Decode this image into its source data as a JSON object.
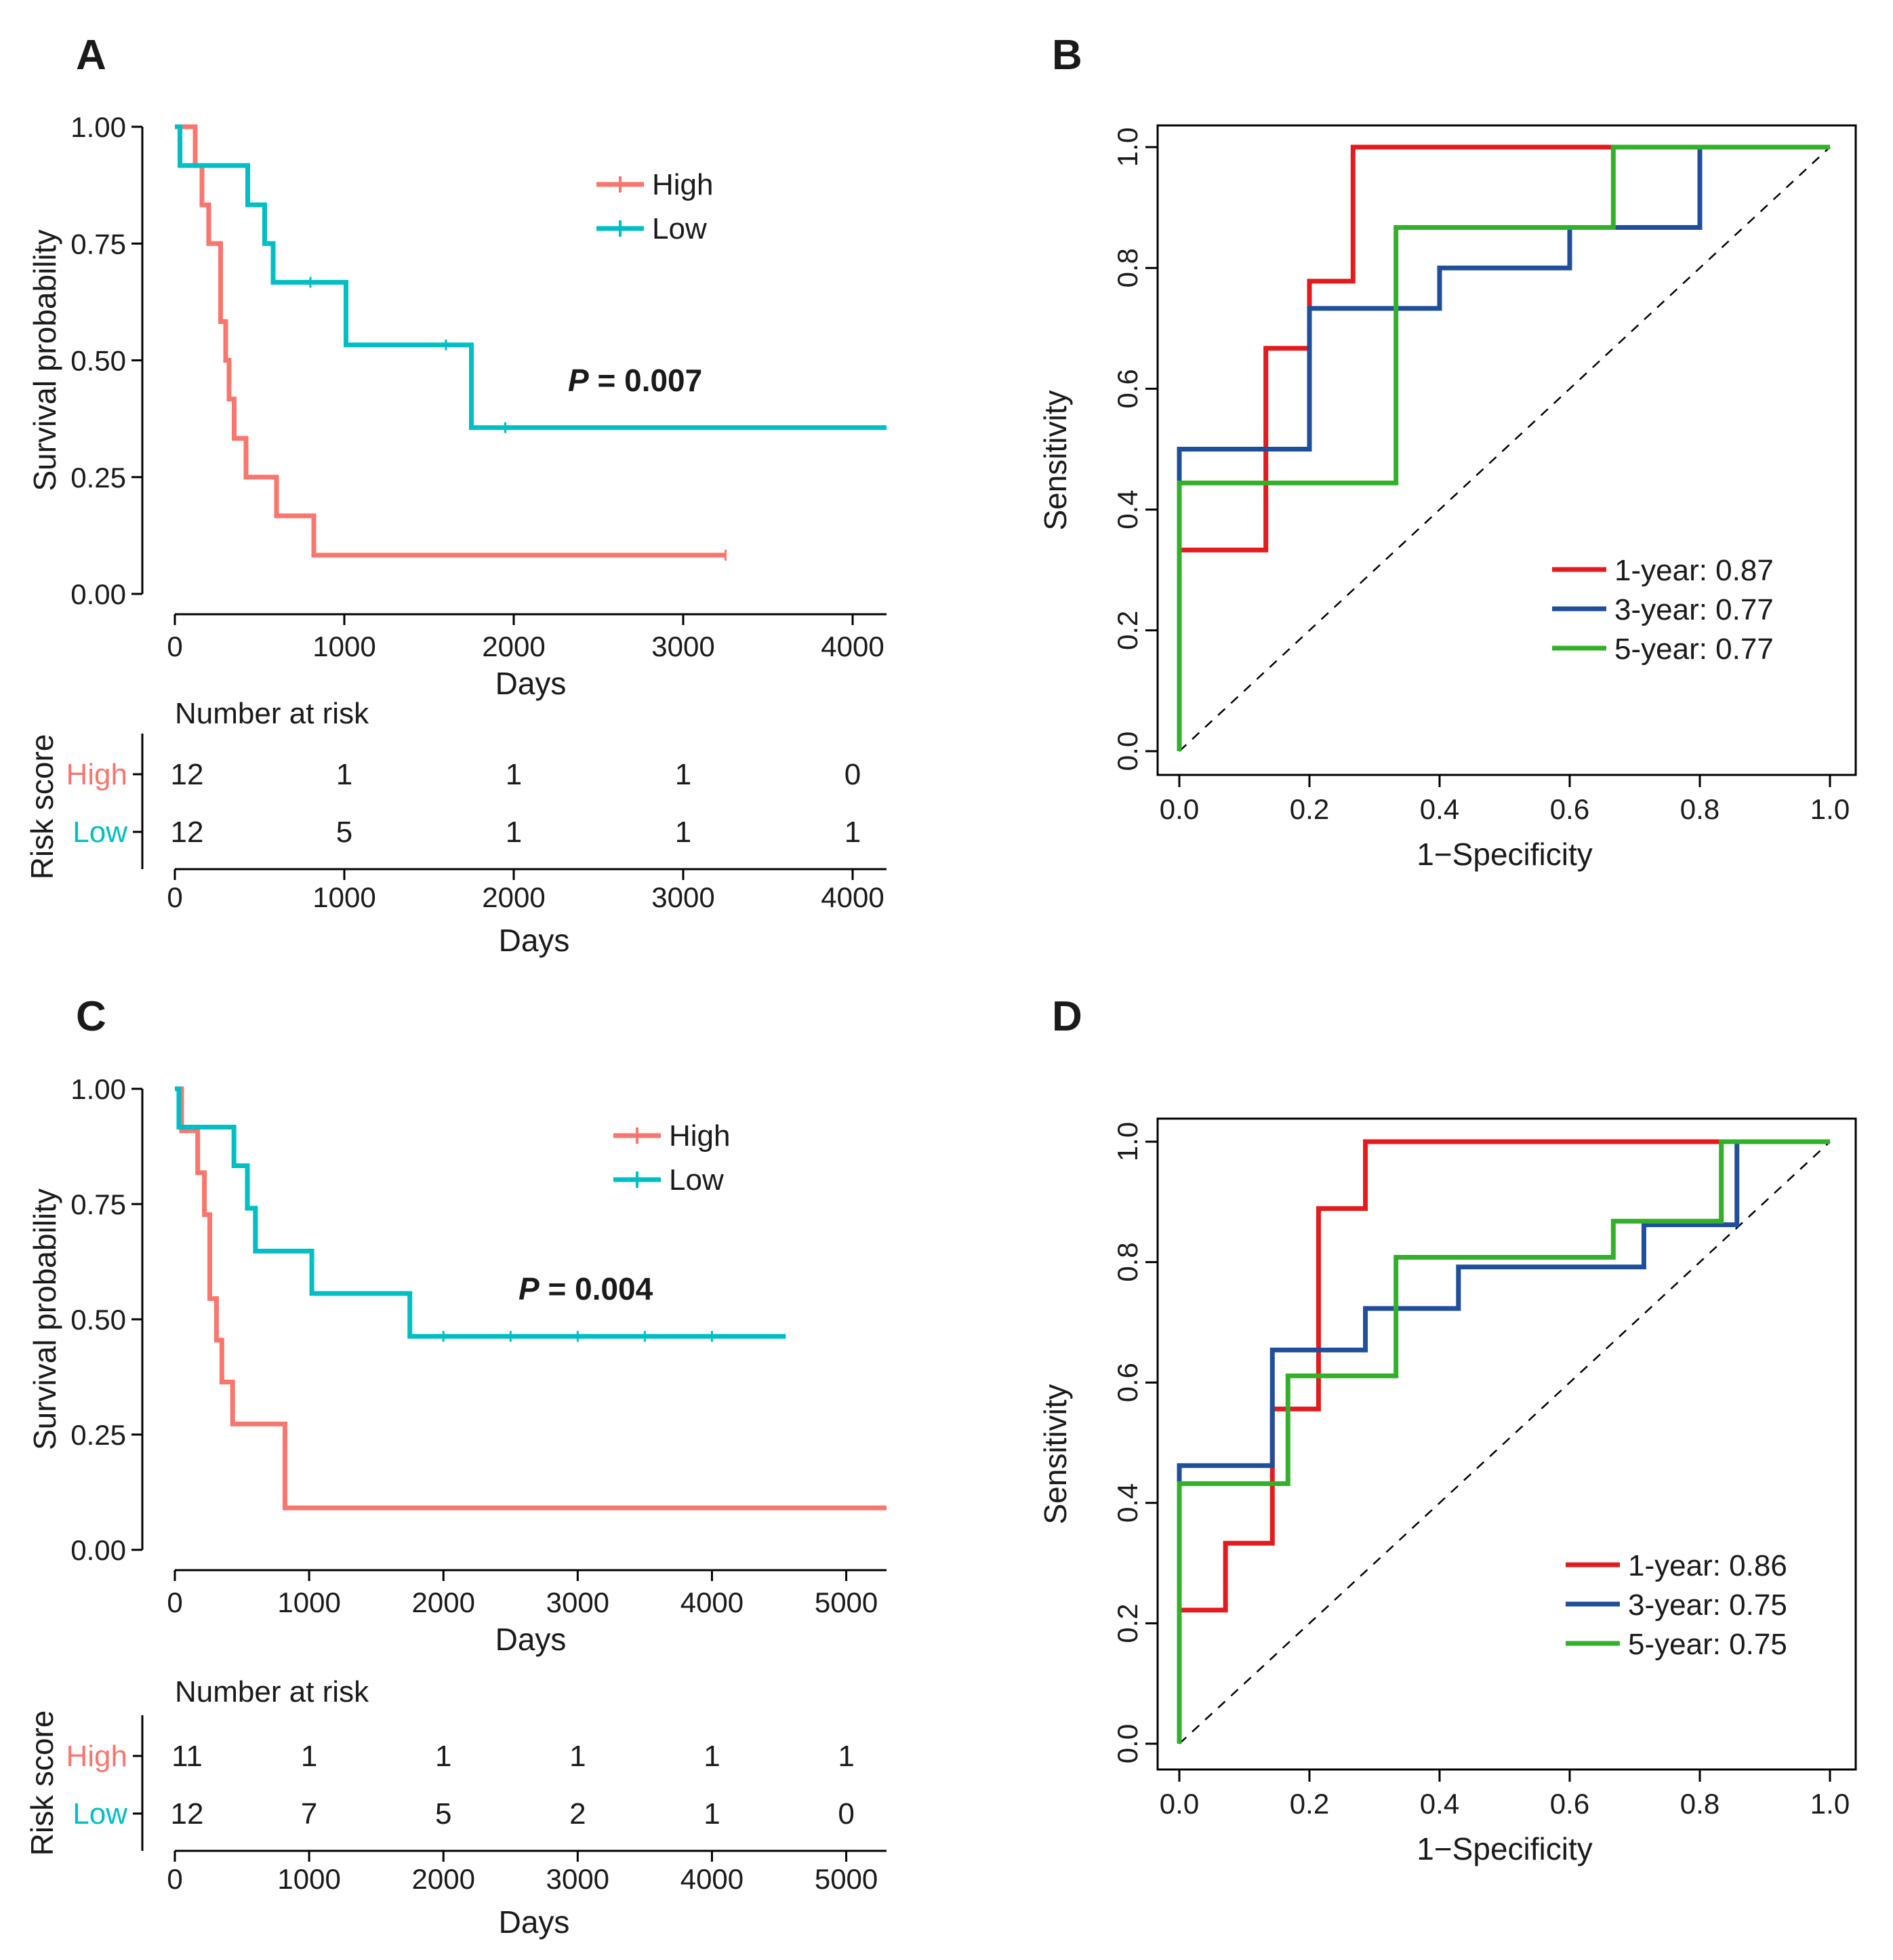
{
  "panels": {
    "A": "A",
    "B": "B",
    "C": "C",
    "D": "D"
  },
  "colors": {
    "high": "#F8766D",
    "low": "#00BFC4",
    "year1": "#E41A1C",
    "year3": "#1F4E9A",
    "year5": "#33B02A"
  },
  "chart_data": [
    {
      "id": "A",
      "type": "line",
      "subtype": "kaplan-meier",
      "title": "",
      "xlabel": "Days",
      "ylabel": "Survival probability",
      "xlim": [
        0,
        4200
      ],
      "ylim": [
        0,
        1
      ],
      "xticks": [
        0,
        1000,
        2000,
        3000,
        4000
      ],
      "xtick_labels": [
        "0",
        "1000",
        "2000",
        "3000",
        "4000"
      ],
      "yticks": [
        0,
        0.25,
        0.5,
        0.75,
        1.0
      ],
      "ytick_labels": [
        "0.00",
        "0.25",
        "0.50",
        "0.75",
        "1.00"
      ],
      "legend_position": "top-right",
      "pvalue_prefix": "P",
      "pvalue_text": " = 0.007",
      "series": [
        {
          "name": "High",
          "color": "#F8766D",
          "x": [
            0,
            120,
            160,
            200,
            270,
            300,
            320,
            350,
            420,
            600,
            820,
            3250
          ],
          "y": [
            1.0,
            0.917,
            0.833,
            0.75,
            0.583,
            0.5,
            0.417,
            0.333,
            0.25,
            0.167,
            0.083,
            0.083
          ],
          "censored_x": [
            3250
          ]
        },
        {
          "name": "Low",
          "color": "#00BFC4",
          "x": [
            0,
            30,
            430,
            530,
            580,
            640,
            1010,
            1750,
            4200
          ],
          "y": [
            1.0,
            0.917,
            0.833,
            0.75,
            0.667,
            0.667,
            0.533,
            0.356,
            0.356
          ],
          "censored_x": [
            800,
            1600,
            1950
          ]
        }
      ],
      "risk_table": {
        "title": "Number at risk",
        "ylabel": "Risk score",
        "xlabel": "Days",
        "rows": [
          {
            "group": "High",
            "values": [
              "12",
              "1",
              "1",
              "1",
              "0"
            ]
          },
          {
            "group": "Low",
            "values": [
              "12",
              "5",
              "1",
              "1",
              "1"
            ]
          }
        ],
        "x": [
          0,
          1000,
          2000,
          3000,
          4000
        ]
      }
    },
    {
      "id": "B",
      "type": "line",
      "subtype": "roc",
      "title": "",
      "xlabel": "1−Specificity",
      "ylabel": "Sensitivity",
      "xlim": [
        0,
        1
      ],
      "ylim": [
        0,
        1
      ],
      "xticks": [
        0,
        0.2,
        0.4,
        0.6,
        0.8,
        1.0
      ],
      "xtick_labels": [
        "0.0",
        "0.2",
        "0.4",
        "0.6",
        "0.8",
        "1.0"
      ],
      "yticks": [
        0,
        0.2,
        0.4,
        0.6,
        0.8,
        1.0
      ],
      "ytick_labels": [
        "0.0",
        "0.2",
        "0.4",
        "0.6",
        "0.8",
        "1.0"
      ],
      "legend_position": "bottom-right",
      "series": [
        {
          "name": "1-year: 0.87",
          "color": "#E41A1C",
          "x": [
            0,
            0,
            0.133,
            0.133,
            0.2,
            0.2,
            0.267,
            0.267,
            1.0
          ],
          "y": [
            0,
            0.333,
            0.333,
            0.667,
            0.667,
            0.778,
            0.778,
            1.0,
            1.0
          ]
        },
        {
          "name": "3-year: 0.77",
          "color": "#1F4E9A",
          "x": [
            0,
            0,
            0.2,
            0.2,
            0.4,
            0.4,
            0.6,
            0.6,
            0.8,
            0.8,
            1.0
          ],
          "y": [
            0,
            0.5,
            0.5,
            0.733,
            0.733,
            0.8,
            0.8,
            0.867,
            0.867,
            1.0,
            1.0
          ]
        },
        {
          "name": "5-year: 0.77",
          "color": "#33B02A",
          "x": [
            0,
            0,
            0.333,
            0.333,
            0.667,
            0.667,
            1.0
          ],
          "y": [
            0,
            0.444,
            0.444,
            0.867,
            0.867,
            1.0,
            1.0
          ]
        }
      ]
    },
    {
      "id": "C",
      "type": "line",
      "subtype": "kaplan-meier",
      "title": "",
      "xlabel": "Days",
      "ylabel": "Survival probability",
      "xlim": [
        0,
        5300
      ],
      "ylim": [
        0,
        1
      ],
      "xticks": [
        0,
        1000,
        2000,
        3000,
        4000,
        5000
      ],
      "xtick_labels": [
        "0",
        "1000",
        "2000",
        "3000",
        "4000",
        "5000"
      ],
      "yticks": [
        0,
        0.25,
        0.5,
        0.75,
        1.0
      ],
      "ytick_labels": [
        "0.00",
        "0.25",
        "0.50",
        "0.75",
        "1.00"
      ],
      "legend_position": "top-right",
      "pvalue_prefix": "P",
      "pvalue_text": " = 0.004",
      "series": [
        {
          "name": "High",
          "color": "#F8766D",
          "x": [
            0,
            50,
            120,
            170,
            220,
            260,
            310,
            350,
            430,
            820,
            5300
          ],
          "y": [
            1.0,
            0.909,
            0.909,
            0.818,
            0.727,
            0.545,
            0.455,
            0.364,
            0.273,
            0.091,
            0.091
          ],
          "censored_x": []
        },
        {
          "name": "Low",
          "color": "#00BFC4",
          "x": [
            0,
            30,
            440,
            540,
            600,
            1020,
            1750,
            4550
          ],
          "y": [
            1.0,
            0.917,
            0.833,
            0.741,
            0.648,
            0.556,
            0.463,
            0.463
          ],
          "censored_x": [
            2000,
            2500,
            3000,
            3500,
            4000
          ]
        }
      ],
      "risk_table": {
        "title": "Number at risk",
        "ylabel": "Risk score",
        "xlabel": "Days",
        "rows": [
          {
            "group": "High",
            "values": [
              "11",
              "1",
              "1",
              "1",
              "1",
              "1"
            ]
          },
          {
            "group": "Low",
            "values": [
              "12",
              "7",
              "5",
              "2",
              "1",
              "0"
            ]
          }
        ],
        "x": [
          0,
          1000,
          2000,
          3000,
          4000,
          5000
        ]
      }
    },
    {
      "id": "D",
      "type": "line",
      "subtype": "roc",
      "title": "",
      "xlabel": "1−Specificity",
      "ylabel": "Sensitivity",
      "xlim": [
        0,
        1
      ],
      "ylim": [
        0,
        1
      ],
      "xticks": [
        0,
        0.2,
        0.4,
        0.6,
        0.8,
        1.0
      ],
      "xtick_labels": [
        "0.0",
        "0.2",
        "0.4",
        "0.6",
        "0.8",
        "1.0"
      ],
      "yticks": [
        0,
        0.2,
        0.4,
        0.6,
        0.8,
        1.0
      ],
      "ytick_labels": [
        "0.0",
        "0.2",
        "0.4",
        "0.6",
        "0.8",
        "1.0"
      ],
      "legend_position": "bottom-right",
      "series": [
        {
          "name": "1-year: 0.86",
          "color": "#E41A1C",
          "x": [
            0,
            0,
            0.071,
            0.071,
            0.143,
            0.143,
            0.214,
            0.214,
            0.286,
            0.286,
            1.0
          ],
          "y": [
            0,
            0.222,
            0.222,
            0.333,
            0.333,
            0.556,
            0.556,
            0.889,
            0.889,
            1.0,
            1.0
          ]
        },
        {
          "name": "3-year: 0.75",
          "color": "#1F4E9A",
          "x": [
            0,
            0,
            0.143,
            0.143,
            0.286,
            0.286,
            0.429,
            0.429,
            0.714,
            0.714,
            0.857,
            0.857,
            1.0
          ],
          "y": [
            0,
            0.462,
            0.462,
            0.654,
            0.654,
            0.723,
            0.723,
            0.792,
            0.792,
            0.862,
            0.862,
            1.0,
            1.0
          ]
        },
        {
          "name": "5-year: 0.75",
          "color": "#33B02A",
          "x": [
            0,
            0,
            0.167,
            0.167,
            0.333,
            0.333,
            0.667,
            0.667,
            0.833,
            0.833,
            1.0
          ],
          "y": [
            0,
            0.432,
            0.432,
            0.611,
            0.611,
            0.808,
            0.808,
            0.868,
            0.868,
            1.0,
            1.0
          ]
        }
      ]
    }
  ]
}
